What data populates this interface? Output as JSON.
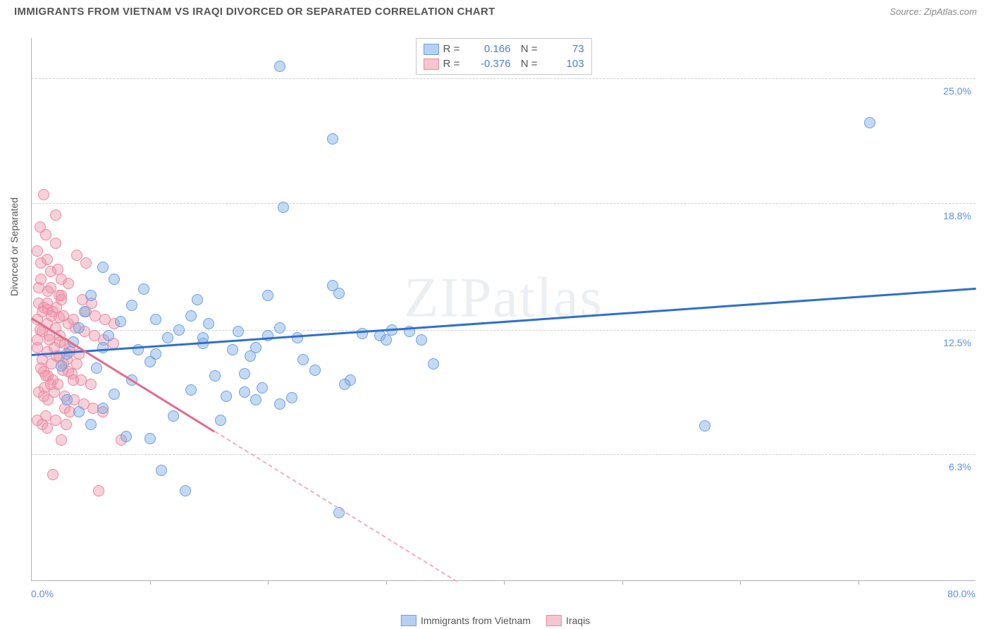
{
  "title": "IMMIGRANTS FROM VIETNAM VS IRAQI DIVORCED OR SEPARATED CORRELATION CHART",
  "source_label": "Source:",
  "source_value": "ZipAtlas.com",
  "watermark": "ZIPatlas",
  "yaxis_label": "Divorced or Separated",
  "chart": {
    "type": "scatter",
    "xlim": [
      0,
      80
    ],
    "ylim": [
      0,
      27
    ],
    "xlabel_min": "0.0%",
    "xlabel_max": "80.0%",
    "x_ticks": [
      10,
      20,
      30,
      40,
      50,
      60,
      70
    ],
    "y_gridlines": [
      {
        "value": 6.3,
        "label": "6.3%"
      },
      {
        "value": 12.5,
        "label": "12.5%"
      },
      {
        "value": 18.8,
        "label": "18.8%"
      },
      {
        "value": 25.0,
        "label": "25.0%"
      }
    ],
    "background_color": "#ffffff",
    "grid_color": "#d0d0d0",
    "marker_size": 16,
    "marker_opacity": 0.45,
    "series": [
      {
        "name": "Immigrants from Vietnam",
        "color_fill": "#7aaae6",
        "color_stroke": "#6ea0dd",
        "trend_color": "#2f6fd0",
        "R": "0.166",
        "N": "73",
        "trend": {
          "x1": 0,
          "y1": 11.3,
          "x2": 80,
          "y2": 14.6,
          "solid_until_x": 80
        },
        "points": [
          [
            21,
            25.6
          ],
          [
            25.5,
            22
          ],
          [
            21.3,
            18.6
          ],
          [
            71,
            22.8
          ],
          [
            57,
            7.7
          ],
          [
            25.5,
            14.7
          ],
          [
            26,
            14.3
          ],
          [
            28,
            12.3
          ],
          [
            29.5,
            12.2
          ],
          [
            30,
            12.0
          ],
          [
            30.5,
            12.5
          ],
          [
            32,
            12.4
          ],
          [
            33,
            12.0
          ],
          [
            34,
            10.8
          ],
          [
            27,
            10.0
          ],
          [
            26.5,
            9.8
          ],
          [
            19.5,
            9.6
          ],
          [
            18,
            9.4
          ],
          [
            16.5,
            9.2
          ],
          [
            22,
            9.1
          ],
          [
            21,
            8.8
          ],
          [
            15,
            12.8
          ],
          [
            14.5,
            11.8
          ],
          [
            13.5,
            13.2
          ],
          [
            12.5,
            12.5
          ],
          [
            11.5,
            12.1
          ],
          [
            10.5,
            11.3
          ],
          [
            10,
            10.9
          ],
          [
            9.5,
            14.5
          ],
          [
            8.5,
            13.7
          ],
          [
            7.5,
            12.9
          ],
          [
            6.5,
            12.2
          ],
          [
            6,
            11.6
          ],
          [
            5.5,
            10.6
          ],
          [
            7,
            15.0
          ],
          [
            6,
            15.6
          ],
          [
            5,
            14.2
          ],
          [
            4.5,
            13.4
          ],
          [
            4,
            12.6
          ],
          [
            3.5,
            11.9
          ],
          [
            3,
            11.3
          ],
          [
            2.5,
            10.7
          ],
          [
            8,
            7.2
          ],
          [
            13,
            4.5
          ],
          [
            10,
            7.1
          ],
          [
            26,
            3.4
          ],
          [
            14.5,
            12.1
          ],
          [
            17.5,
            12.4
          ],
          [
            18.5,
            11.2
          ],
          [
            19,
            11.6
          ],
          [
            20,
            12.2
          ],
          [
            21,
            12.6
          ],
          [
            22.5,
            12.1
          ],
          [
            8.5,
            10.0
          ],
          [
            7,
            9.3
          ],
          [
            6,
            8.6
          ],
          [
            5,
            7.8
          ],
          [
            4,
            8.4
          ],
          [
            3,
            9.0
          ],
          [
            16,
            8.0
          ],
          [
            11,
            5.5
          ],
          [
            12,
            8.2
          ],
          [
            9,
            11.5
          ],
          [
            10.5,
            13.0
          ],
          [
            14,
            14.0
          ],
          [
            20,
            14.2
          ],
          [
            18,
            10.3
          ],
          [
            23,
            11.0
          ],
          [
            24,
            10.5
          ],
          [
            19,
            9.0
          ],
          [
            17,
            11.5
          ],
          [
            15.5,
            10.2
          ],
          [
            13.5,
            9.5
          ]
        ]
      },
      {
        "name": "Iraqis",
        "color_fill": "#f096aa",
        "color_stroke": "#e78aa2",
        "trend_color": "#e36b8a",
        "R": "-0.376",
        "N": "103",
        "trend": {
          "x1": 0,
          "y1": 13.1,
          "x2": 36,
          "y2": 0,
          "solid_until_x": 15.5
        },
        "points": [
          [
            1.0,
            19.2
          ],
          [
            2.0,
            18.2
          ],
          [
            0.5,
            16.4
          ],
          [
            1.3,
            16.0
          ],
          [
            2.2,
            15.5
          ],
          [
            0.8,
            15.0
          ],
          [
            1.6,
            14.6
          ],
          [
            2.5,
            14.2
          ],
          [
            0.6,
            13.8
          ],
          [
            1.4,
            13.5
          ],
          [
            2.3,
            13.1
          ],
          [
            3.1,
            12.8
          ],
          [
            0.7,
            12.5
          ],
          [
            1.5,
            12.2
          ],
          [
            2.4,
            11.9
          ],
          [
            3.2,
            11.6
          ],
          [
            4.0,
            11.3
          ],
          [
            0.9,
            11.0
          ],
          [
            1.7,
            10.8
          ],
          [
            2.6,
            10.5
          ],
          [
            3.4,
            10.3
          ],
          [
            4.2,
            10.0
          ],
          [
            5.0,
            9.8
          ],
          [
            1.1,
            9.6
          ],
          [
            1.9,
            9.4
          ],
          [
            2.8,
            9.2
          ],
          [
            3.6,
            9.0
          ],
          [
            4.4,
            8.8
          ],
          [
            5.2,
            8.6
          ],
          [
            6.0,
            8.4
          ],
          [
            1.2,
            8.2
          ],
          [
            2.0,
            8.0
          ],
          [
            2.9,
            7.8
          ],
          [
            3.7,
            12.6
          ],
          [
            4.5,
            12.4
          ],
          [
            5.3,
            12.2
          ],
          [
            6.1,
            12.0
          ],
          [
            6.9,
            11.8
          ],
          [
            0.5,
            11.6
          ],
          [
            1.3,
            11.4
          ],
          [
            2.1,
            11.2
          ],
          [
            3.0,
            11.0
          ],
          [
            3.8,
            10.8
          ],
          [
            4.6,
            13.4
          ],
          [
            5.4,
            13.2
          ],
          [
            6.2,
            13.0
          ],
          [
            7.0,
            12.8
          ],
          [
            1.0,
            13.6
          ],
          [
            1.8,
            13.4
          ],
          [
            2.7,
            13.2
          ],
          [
            3.5,
            13.0
          ],
          [
            4.3,
            14.0
          ],
          [
            5.1,
            13.8
          ],
          [
            0.6,
            14.6
          ],
          [
            1.4,
            14.4
          ],
          [
            2.3,
            14.2
          ],
          [
            3.1,
            14.8
          ],
          [
            0.8,
            15.8
          ],
          [
            1.6,
            15.4
          ],
          [
            2.5,
            15.0
          ],
          [
            0.5,
            12.0
          ],
          [
            0.9,
            12.4
          ],
          [
            1.3,
            12.8
          ],
          [
            1.7,
            13.2
          ],
          [
            2.1,
            13.6
          ],
          [
            2.5,
            14.0
          ],
          [
            1.0,
            10.4
          ],
          [
            1.4,
            10.2
          ],
          [
            1.8,
            10.0
          ],
          [
            2.2,
            9.8
          ],
          [
            0.6,
            9.4
          ],
          [
            1.0,
            9.2
          ],
          [
            1.4,
            9.0
          ],
          [
            2.8,
            8.6
          ],
          [
            3.2,
            8.4
          ],
          [
            0.5,
            8.0
          ],
          [
            0.9,
            7.8
          ],
          [
            1.3,
            7.6
          ],
          [
            2.5,
            7.0
          ],
          [
            7.6,
            7.0
          ],
          [
            1.8,
            5.3
          ],
          [
            5.7,
            4.5
          ],
          [
            3.8,
            16.2
          ],
          [
            4.6,
            15.8
          ],
          [
            2.0,
            16.8
          ],
          [
            1.2,
            17.2
          ],
          [
            0.7,
            17.6
          ],
          [
            1.5,
            12.0
          ],
          [
            1.9,
            11.6
          ],
          [
            2.3,
            11.2
          ],
          [
            2.7,
            10.8
          ],
          [
            3.1,
            10.4
          ],
          [
            3.5,
            10.0
          ],
          [
            0.8,
            10.6
          ],
          [
            1.2,
            10.2
          ],
          [
            1.6,
            9.8
          ],
          [
            2.0,
            12.6
          ],
          [
            2.4,
            12.2
          ],
          [
            2.8,
            11.8
          ],
          [
            3.2,
            11.4
          ],
          [
            0.5,
            13.0
          ],
          [
            0.9,
            13.4
          ],
          [
            1.3,
            13.8
          ]
        ]
      }
    ]
  },
  "legend_bottom": [
    {
      "swatch": "blue",
      "label": "Immigrants from Vietnam"
    },
    {
      "swatch": "pink",
      "label": "Iraqis"
    }
  ]
}
